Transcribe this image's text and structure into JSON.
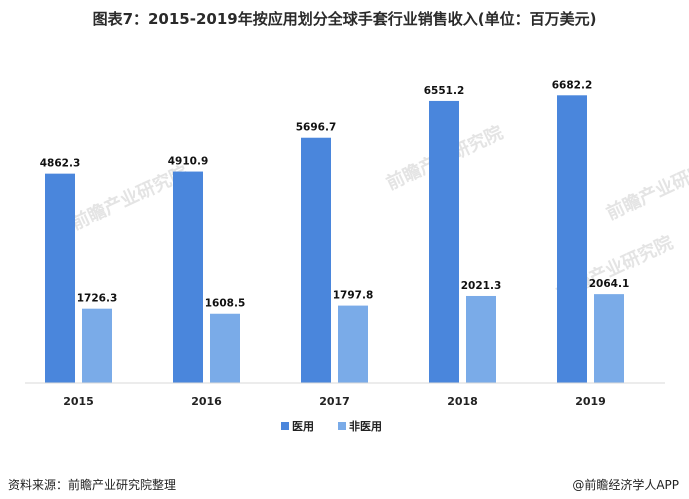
{
  "title": "图表7：2015-2019年按应用划分全球手套行业销售收入(单位：百万美元)",
  "source": "资料来源：前瞻产业研究院整理",
  "credit": "@前瞻经济学人APP",
  "watermark": "前瞻产业研究院",
  "colors": {
    "medical": "#4a86dc",
    "non_medical": "#7aabe8",
    "axis": "#d9d9d9"
  },
  "chart_data": {
    "type": "bar",
    "title": "图表7：2015-2019年按应用划分全球手套行业销售收入(单位：百万美元)",
    "xlabel": "",
    "ylabel": "",
    "categories": [
      "2015",
      "2016",
      "2017",
      "2018",
      "2019"
    ],
    "series": [
      {
        "name": "医用",
        "values": [
          4862.3,
          4910.9,
          5696.7,
          6551.2,
          6682.2
        ]
      },
      {
        "name": "非医用",
        "values": [
          1726.3,
          1608.5,
          1797.8,
          2021.3,
          2064.1
        ]
      }
    ],
    "ylim": [
      0,
      7200
    ],
    "grid": false,
    "legend_position": "bottom",
    "data_labels": true
  }
}
